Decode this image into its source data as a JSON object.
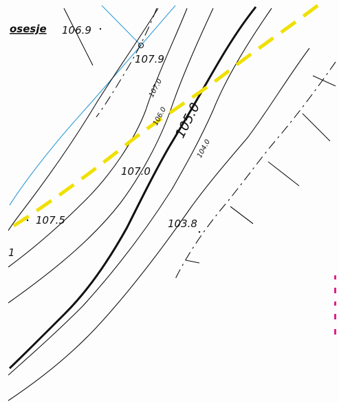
{
  "map": {
    "title_fragment": "osesje",
    "edge_mark": "1",
    "spot_heights": [
      {
        "id": "sh-106-9",
        "label": "106.9"
      },
      {
        "id": "sh-107-9",
        "label": "107.9"
      },
      {
        "id": "sh-107-5",
        "label": "107.5"
      }
    ],
    "contour_labels": [
      {
        "id": "c-107-0-upper",
        "label": "107.0"
      },
      {
        "id": "c-106-0",
        "label": "106.0"
      },
      {
        "id": "c-105-0",
        "label": "105.0"
      },
      {
        "id": "c-104-0",
        "label": "104.0"
      },
      {
        "id": "c-107-0-mid",
        "label": "107.0"
      },
      {
        "id": "c-103-8",
        "label": "103.8"
      }
    ],
    "colors": {
      "contour": "#111111",
      "blue_line": "#3aa0d8",
      "yellow_dash": "#f0e000",
      "pink_text": "#e0208a"
    }
  }
}
